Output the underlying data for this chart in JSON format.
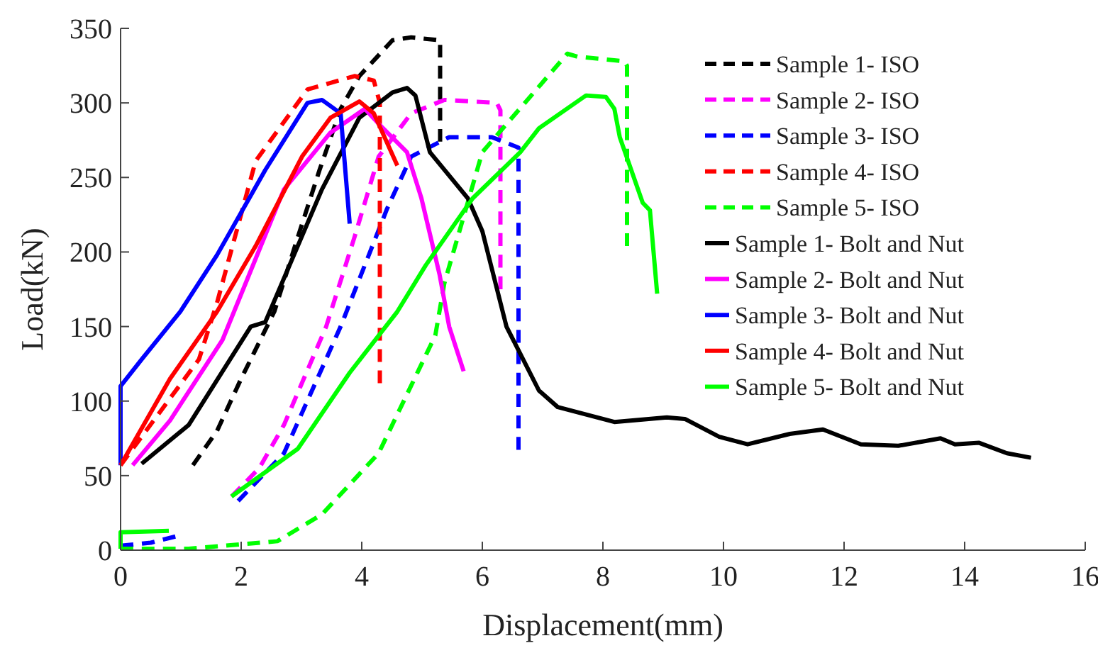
{
  "chart_data": {
    "type": "line",
    "xlabel": "Displacement(mm)",
    "ylabel": "Load(kN)",
    "xlim": [
      0,
      16
    ],
    "ylim": [
      0,
      350
    ],
    "xticks": [
      0,
      2,
      4,
      6,
      8,
      10,
      12,
      14,
      16
    ],
    "yticks": [
      0,
      50,
      100,
      150,
      200,
      250,
      300,
      350
    ],
    "grid": false,
    "legend": "top right",
    "series": [
      {
        "name": "Sample 1- ISO",
        "color": "#000000",
        "line_style": "dashed",
        "x": [
          1.2,
          1.6,
          2.0,
          2.55,
          2.94,
          3.3,
          3.65,
          3.96,
          4.51,
          4.82,
          5.3,
          5.3
        ],
        "values": [
          57,
          80,
          115,
          160,
          210,
          255,
          296,
          318,
          342,
          344,
          342,
          274
        ]
      },
      {
        "name": "Sample 2- ISO",
        "color": "#ff00ff",
        "line_style": "dashed",
        "x": [
          1.84,
          2.3,
          2.71,
          3.41,
          3.88,
          4.28,
          4.82,
          5.37,
          6.24,
          6.3,
          6.3
        ],
        "values": [
          36,
          55,
          84,
          150,
          210,
          264,
          293,
          302,
          300,
          295,
          175
        ]
      },
      {
        "name": "Sample 3- ISO",
        "color": "#0000ff",
        "line_style": "dashed",
        "x": [
          0,
          0.5,
          0.99,
          null,
          1.95,
          2.71,
          3.65,
          4.42,
          4.82,
          5.45,
          6.16,
          6.6,
          6.6
        ],
        "values": [
          3,
          5,
          10,
          null,
          33,
          65,
          150,
          229,
          264,
          277,
          277,
          270,
          65
        ]
      },
      {
        "name": "Sample 4- ISO",
        "color": "#ff0000",
        "line_style": "dashed",
        "x": [
          0,
          1.3,
          1.6,
          2.24,
          3.1,
          3.88,
          4.2,
          4.3,
          4.3
        ],
        "values": [
          57,
          128,
          166,
          261,
          309,
          318,
          315,
          300,
          112
        ]
      },
      {
        "name": "Sample 5- ISO",
        "color": "#00ff00",
        "line_style": "dashed",
        "x": [
          0,
          1.13,
          2.6,
          3.34,
          4.28,
          5.22,
          5.37,
          6.0,
          7.41,
          7.58,
          8.35,
          8.4,
          8.4
        ],
        "values": [
          1,
          1,
          6,
          24,
          65,
          144,
          179,
          267,
          333,
          331,
          328,
          325,
          204
        ]
      },
      {
        "name": "Sample 1- Bolt and Nut",
        "color": "#000000",
        "line_style": "solid",
        "x": [
          0.35,
          1.13,
          2.16,
          2.4,
          3.34,
          3.96,
          4.51,
          4.75,
          4.89,
          5.13,
          5.76,
          6.0,
          6.4,
          6.94,
          7.25,
          8.19,
          9.06,
          9.36,
          9.93,
          10.4,
          11.1,
          11.65,
          12.28,
          12.9,
          13.6,
          13.84,
          14.24,
          14.7,
          15.1
        ],
        "values": [
          58,
          84,
          150,
          153,
          242,
          290,
          307,
          310,
          305,
          267,
          236,
          214,
          150,
          107,
          96,
          86,
          89,
          88,
          76,
          71,
          78,
          81,
          71,
          70,
          75,
          71,
          72,
          65,
          62
        ]
      },
      {
        "name": "Sample 2- Bolt and Nut",
        "color": "#ff00ff",
        "line_style": "solid",
        "x": [
          0.2,
          0.82,
          1.69,
          2.71,
          3.48,
          4.05,
          4.28,
          4.75,
          4.99,
          5.29,
          5.45,
          5.69
        ],
        "values": [
          57,
          87,
          141,
          242,
          280,
          296,
          286,
          267,
          236,
          185,
          150,
          120
        ]
      },
      {
        "name": "Sample 3- Bolt and Nut",
        "color": "#0000ff",
        "line_style": "solid",
        "x": [
          0,
          0,
          0.35,
          0.99,
          1.6,
          2.4,
          3.1,
          3.34,
          3.65,
          3.8
        ],
        "values": [
          57,
          110,
          128,
          160,
          198,
          255,
          300,
          302,
          293,
          219
        ]
      },
      {
        "name": "Sample 4- Bolt and Nut",
        "color": "#ff0000",
        "line_style": "solid",
        "x": [
          0,
          0.82,
          1.6,
          2.24,
          3.01,
          3.48,
          3.96,
          4.2,
          4.59
        ],
        "values": [
          57,
          115,
          160,
          204,
          264,
          290,
          301,
          293,
          258
        ]
      },
      {
        "name": "Sample 5- Bolt and Nut",
        "color": "#00ff00",
        "line_style": "solid",
        "x": [
          0,
          0,
          0.8,
          null,
          1.84,
          2.94,
          3.8,
          4.59,
          5.06,
          5.84,
          6.63,
          6.94,
          7.72,
          8.05,
          8.19,
          8.28,
          8.66,
          8.78,
          8.9
        ],
        "values": [
          1,
          12,
          13,
          null,
          36,
          68,
          119,
          160,
          191,
          236,
          267,
          283,
          305,
          304,
          296,
          277,
          233,
          228,
          172
        ]
      }
    ]
  }
}
